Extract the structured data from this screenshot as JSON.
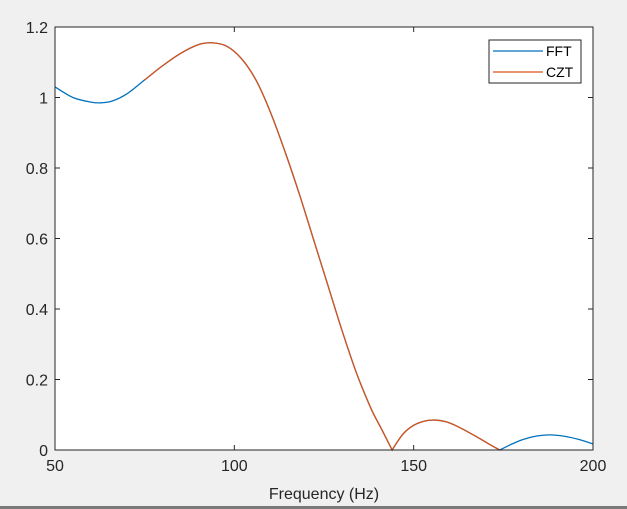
{
  "chart_data": {
    "type": "line",
    "title": "",
    "xlabel": "Frequency (Hz)",
    "ylabel": "",
    "xlim": [
      50,
      200
    ],
    "ylim": [
      0,
      1.2
    ],
    "xticks": [
      50,
      100,
      150,
      200
    ],
    "xtick_labels": [
      "50",
      "100",
      "150",
      "200"
    ],
    "yticks": [
      0,
      0.2,
      0.4,
      0.6,
      0.8,
      1,
      1.2
    ],
    "ytick_labels": [
      "0",
      "0.2",
      "0.4",
      "0.6",
      "0.8",
      "1",
      "1.2"
    ],
    "grid": false,
    "legend": {
      "position": "top-right",
      "entries": [
        "FFT",
        "CZT"
      ]
    },
    "series": [
      {
        "name": "FFT",
        "color": "#0072BD",
        "x": [
          50,
          55,
          60,
          63,
          66,
          70,
          75,
          80,
          85,
          90,
          94,
          98,
          102,
          106,
          110,
          114,
          118,
          122,
          126,
          130,
          134,
          138,
          141,
          144,
          147,
          150,
          153,
          156,
          159,
          162,
          165,
          168,
          171,
          174,
          177,
          180,
          184,
          188,
          192,
          196,
          200
        ],
        "values": [
          1.03,
          1.0,
          0.987,
          0.985,
          0.99,
          1.01,
          1.05,
          1.09,
          1.125,
          1.15,
          1.155,
          1.145,
          1.11,
          1.05,
          0.96,
          0.85,
          0.73,
          0.6,
          0.47,
          0.34,
          0.22,
          0.12,
          0.06,
          0.0,
          0.045,
          0.07,
          0.082,
          0.085,
          0.08,
          0.068,
          0.052,
          0.035,
          0.017,
          0.0,
          0.015,
          0.028,
          0.039,
          0.043,
          0.039,
          0.03,
          0.017
        ]
      },
      {
        "name": "CZT",
        "color": "#D95319",
        "x": [
          75,
          80,
          85,
          90,
          94,
          98,
          102,
          106,
          110,
          114,
          118,
          122,
          126,
          130,
          134,
          138,
          141,
          144,
          147,
          150,
          153,
          156,
          159,
          162,
          165,
          168,
          171,
          174
        ],
        "values": [
          1.05,
          1.09,
          1.125,
          1.15,
          1.155,
          1.145,
          1.11,
          1.05,
          0.96,
          0.85,
          0.73,
          0.6,
          0.47,
          0.34,
          0.22,
          0.12,
          0.06,
          0.0,
          0.045,
          0.07,
          0.082,
          0.085,
          0.08,
          0.068,
          0.052,
          0.035,
          0.017,
          0.0
        ]
      }
    ]
  }
}
